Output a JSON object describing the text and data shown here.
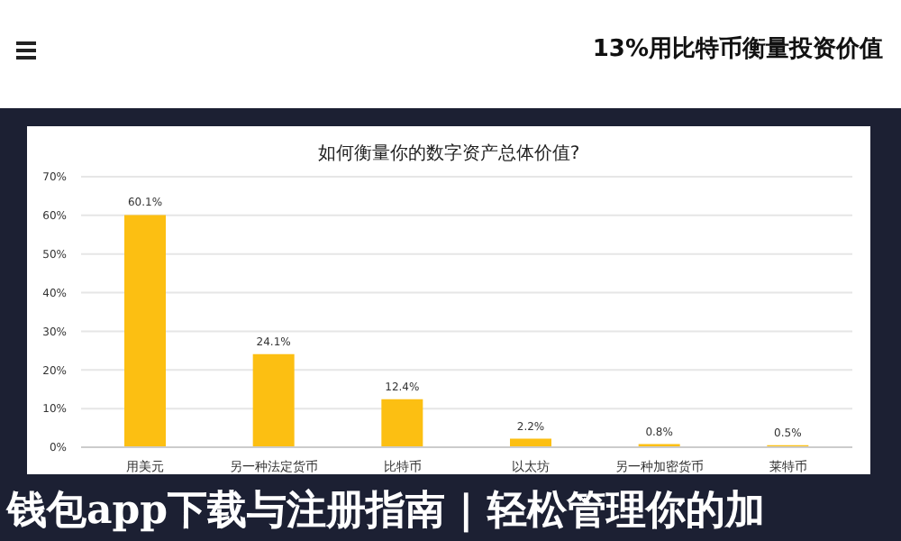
{
  "chart_data": {
    "type": "bar",
    "title": "如何衡量你的数字资产总体价值?",
    "categories": [
      "用美元",
      "另一种法定货币",
      "比特币",
      "以太坊",
      "另一种加密货币",
      "莱特币"
    ],
    "values": [
      60.1,
      24.1,
      12.4,
      2.2,
      0.8,
      0.5
    ],
    "value_labels": [
      "60.1%",
      "24.1%",
      "12.4%",
      "2.2%",
      "0.8%",
      "0.5%"
    ],
    "color": "#fcbf12",
    "ylim": [
      0,
      70
    ],
    "yticks": [
      {
        "value": 0,
        "label": "0%"
      },
      {
        "value": 10,
        "label": "10%"
      },
      {
        "value": 20,
        "label": "20%"
      },
      {
        "value": 30,
        "label": "30%"
      },
      {
        "value": 40,
        "label": "40%"
      },
      {
        "value": 50,
        "label": "50%"
      },
      {
        "value": 60,
        "label": "60%"
      },
      {
        "value": 70,
        "label": "70%"
      }
    ],
    "grid": "y",
    "annotations": [
      "13%用比特币衡量投资价值",
      "钱包app下载与注册指南 | 轻松管理你的加"
    ]
  }
}
